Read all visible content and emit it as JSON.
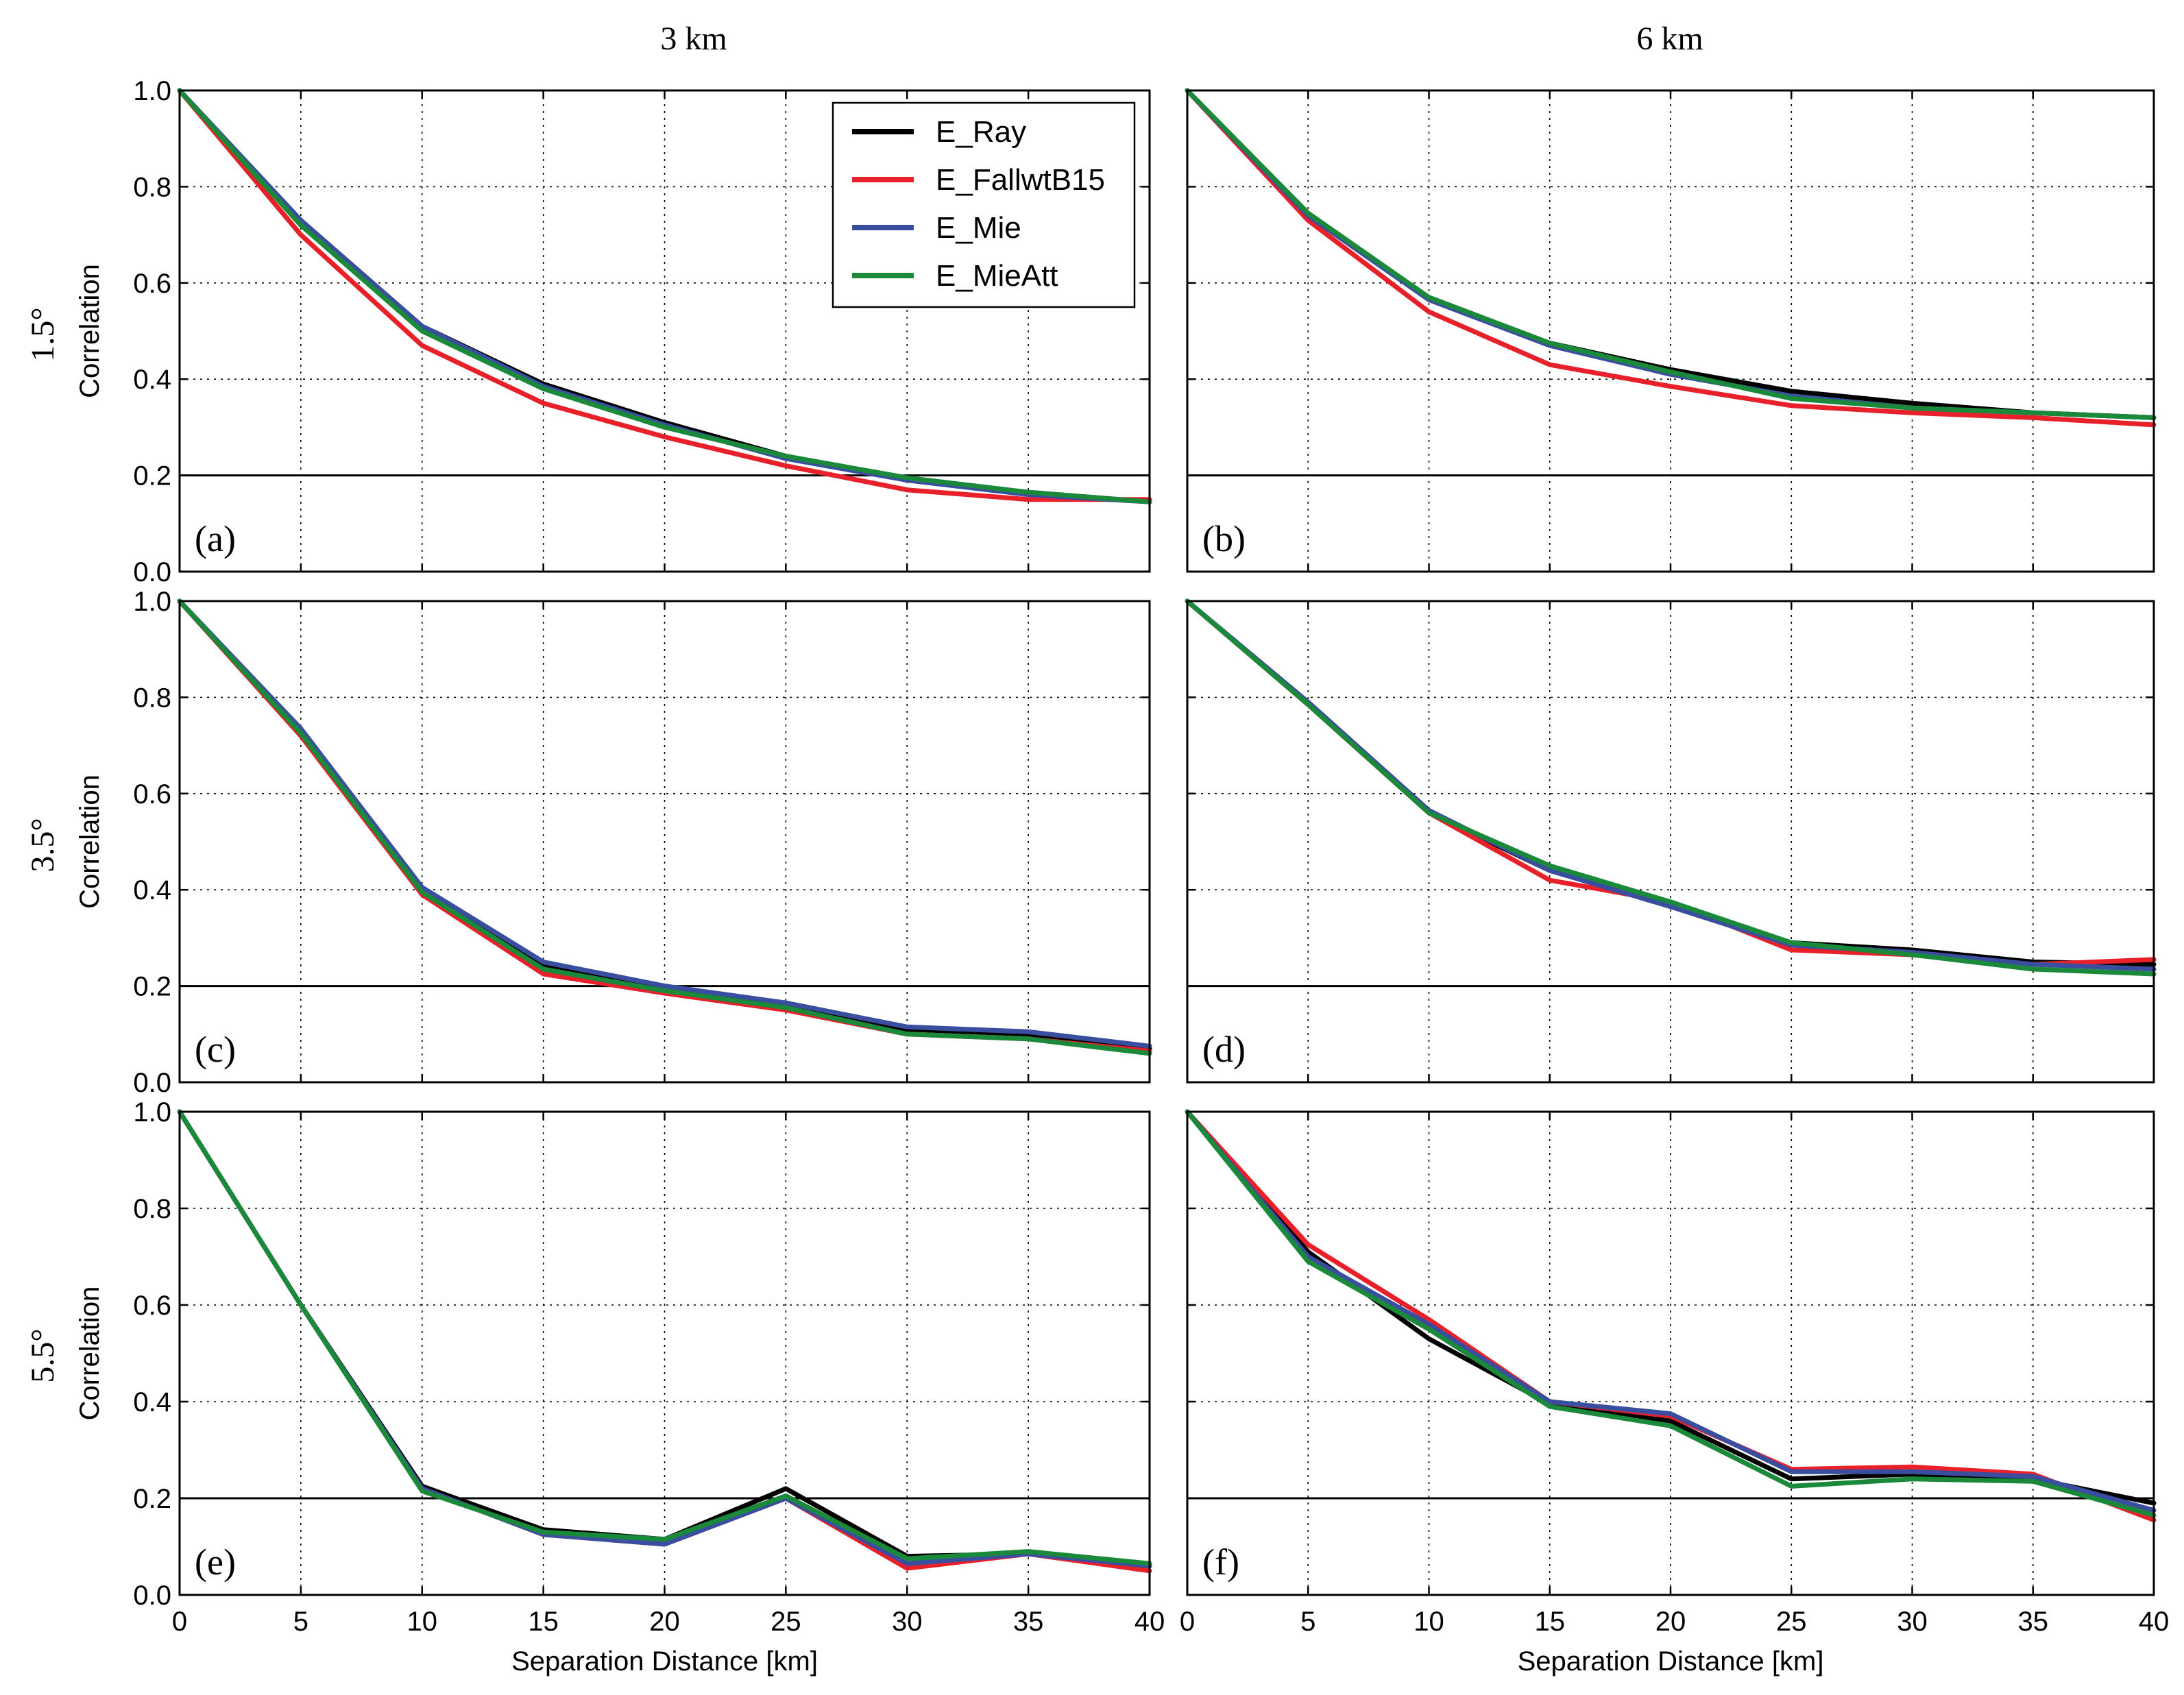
{
  "figure": {
    "col_titles": [
      "3 km",
      "6 km"
    ],
    "row_titles": [
      "1.5°",
      "3.5°",
      "5.5°"
    ],
    "ylabel": "Correlation",
    "xlabel": "Separation Distance [km]",
    "xticks": [
      "0",
      "5",
      "10",
      "15",
      "20",
      "25",
      "30",
      "35",
      "40"
    ],
    "yticks": [
      "0.0",
      "0.2",
      "0.4",
      "0.6",
      "0.8",
      "1.0"
    ],
    "legend": [
      {
        "name": "E_Ray",
        "color": "#000000"
      },
      {
        "name": "E_FallwtB15",
        "color": "#e8202a"
      },
      {
        "name": "E_Mie",
        "color": "#3a4ea0"
      },
      {
        "name": "E_MieAtt",
        "color": "#1a8a3a"
      }
    ]
  },
  "chart_data": [
    {
      "type": "line",
      "panel_label": "(a)",
      "elevation": "1.5°",
      "height": "3 km",
      "xlabel": "",
      "ylabel": "Correlation",
      "x": [
        0,
        5,
        10,
        15,
        20,
        25,
        30,
        35,
        40
      ],
      "xlim": [
        0,
        40
      ],
      "ylim": [
        0,
        1
      ],
      "reference_line": 0.2,
      "grid": true,
      "legend": "top-right",
      "series": [
        {
          "name": "E_Ray",
          "values": [
            1.0,
            0.73,
            0.51,
            0.39,
            0.31,
            0.24,
            0.19,
            0.165,
            0.145
          ]
        },
        {
          "name": "E_FallwtB15",
          "values": [
            1.0,
            0.7,
            0.47,
            0.35,
            0.28,
            0.22,
            0.17,
            0.15,
            0.15
          ]
        },
        {
          "name": "E_Mie",
          "values": [
            1.0,
            0.73,
            0.51,
            0.385,
            0.305,
            0.235,
            0.19,
            0.16,
            0.145
          ]
        },
        {
          "name": "E_MieAtt",
          "values": [
            1.0,
            0.72,
            0.5,
            0.38,
            0.3,
            0.24,
            0.195,
            0.165,
            0.145
          ]
        }
      ]
    },
    {
      "type": "line",
      "panel_label": "(b)",
      "elevation": "1.5°",
      "height": "6 km",
      "xlabel": "",
      "ylabel": "",
      "x": [
        0,
        5,
        10,
        15,
        20,
        25,
        30,
        35,
        40
      ],
      "xlim": [
        0,
        40
      ],
      "ylim": [
        0,
        1
      ],
      "reference_line": 0.2,
      "grid": true,
      "series": [
        {
          "name": "E_Ray",
          "values": [
            1.0,
            0.74,
            0.57,
            0.475,
            0.42,
            0.375,
            0.35,
            0.33,
            0.32
          ]
        },
        {
          "name": "E_FallwtB15",
          "values": [
            1.0,
            0.73,
            0.54,
            0.43,
            0.385,
            0.345,
            0.33,
            0.32,
            0.305
          ]
        },
        {
          "name": "E_Mie",
          "values": [
            1.0,
            0.74,
            0.565,
            0.47,
            0.41,
            0.365,
            0.34,
            0.33,
            0.32
          ]
        },
        {
          "name": "E_MieAtt",
          "values": [
            1.0,
            0.745,
            0.57,
            0.475,
            0.415,
            0.36,
            0.34,
            0.33,
            0.32
          ]
        }
      ]
    },
    {
      "type": "line",
      "panel_label": "(c)",
      "elevation": "3.5°",
      "height": "3 km",
      "xlabel": "",
      "ylabel": "Correlation",
      "x": [
        0,
        5,
        10,
        15,
        20,
        25,
        30,
        35,
        40
      ],
      "xlim": [
        0,
        40
      ],
      "ylim": [
        0,
        1
      ],
      "reference_line": 0.2,
      "grid": true,
      "series": [
        {
          "name": "E_Ray",
          "values": [
            1.0,
            0.73,
            0.4,
            0.245,
            0.2,
            0.16,
            0.11,
            0.1,
            0.07
          ]
        },
        {
          "name": "E_FallwtB15",
          "values": [
            1.0,
            0.72,
            0.39,
            0.225,
            0.185,
            0.15,
            0.1,
            0.09,
            0.065
          ]
        },
        {
          "name": "E_Mie",
          "values": [
            1.0,
            0.735,
            0.405,
            0.25,
            0.2,
            0.165,
            0.115,
            0.105,
            0.075
          ]
        },
        {
          "name": "E_MieAtt",
          "values": [
            1.0,
            0.725,
            0.395,
            0.235,
            0.19,
            0.155,
            0.1,
            0.09,
            0.06
          ]
        }
      ]
    },
    {
      "type": "line",
      "panel_label": "(d)",
      "elevation": "3.5°",
      "height": "6 km",
      "xlabel": "",
      "ylabel": "",
      "x": [
        0,
        5,
        10,
        15,
        20,
        25,
        30,
        35,
        40
      ],
      "xlim": [
        0,
        40
      ],
      "ylim": [
        0,
        1
      ],
      "reference_line": 0.2,
      "grid": true,
      "series": [
        {
          "name": "E_Ray",
          "values": [
            1.0,
            0.785,
            0.56,
            0.44,
            0.37,
            0.29,
            0.275,
            0.25,
            0.245
          ]
        },
        {
          "name": "E_FallwtB15",
          "values": [
            1.0,
            0.785,
            0.56,
            0.42,
            0.375,
            0.275,
            0.265,
            0.245,
            0.255
          ]
        },
        {
          "name": "E_Mie",
          "values": [
            1.0,
            0.79,
            0.565,
            0.44,
            0.365,
            0.285,
            0.27,
            0.245,
            0.235
          ]
        },
        {
          "name": "E_MieAtt",
          "values": [
            1.0,
            0.785,
            0.56,
            0.45,
            0.375,
            0.29,
            0.265,
            0.235,
            0.225
          ]
        }
      ]
    },
    {
      "type": "line",
      "panel_label": "(e)",
      "elevation": "5.5°",
      "height": "3 km",
      "xlabel": "Separation Distance [km]",
      "ylabel": "Correlation",
      "x": [
        0,
        5,
        10,
        15,
        20,
        25,
        30,
        35,
        40
      ],
      "xlim": [
        0,
        40
      ],
      "ylim": [
        0,
        1
      ],
      "reference_line": 0.2,
      "grid": true,
      "series": [
        {
          "name": "E_Ray",
          "values": [
            1.0,
            0.6,
            0.225,
            0.135,
            0.115,
            0.22,
            0.08,
            0.085,
            0.06
          ]
        },
        {
          "name": "E_FallwtB15",
          "values": [
            1.0,
            0.6,
            0.22,
            0.125,
            0.105,
            0.2,
            0.055,
            0.085,
            0.05
          ]
        },
        {
          "name": "E_Mie",
          "values": [
            1.0,
            0.6,
            0.22,
            0.125,
            0.105,
            0.2,
            0.065,
            0.085,
            0.06
          ]
        },
        {
          "name": "E_MieAtt",
          "values": [
            1.0,
            0.6,
            0.215,
            0.13,
            0.115,
            0.205,
            0.075,
            0.09,
            0.065
          ]
        }
      ]
    },
    {
      "type": "line",
      "panel_label": "(f)",
      "elevation": "5.5°",
      "height": "6 km",
      "xlabel": "Separation Distance [km]",
      "ylabel": "",
      "x": [
        0,
        5,
        10,
        15,
        20,
        25,
        30,
        35,
        40
      ],
      "xlim": [
        0,
        40
      ],
      "ylim": [
        0,
        1
      ],
      "reference_line": 0.2,
      "grid": true,
      "series": [
        {
          "name": "E_Ray",
          "values": [
            1.0,
            0.71,
            0.53,
            0.395,
            0.36,
            0.24,
            0.25,
            0.24,
            0.19
          ]
        },
        {
          "name": "E_FallwtB15",
          "values": [
            1.0,
            0.725,
            0.57,
            0.4,
            0.37,
            0.26,
            0.265,
            0.25,
            0.155
          ]
        },
        {
          "name": "E_Mie",
          "values": [
            1.0,
            0.7,
            0.56,
            0.4,
            0.375,
            0.255,
            0.255,
            0.245,
            0.175
          ]
        },
        {
          "name": "E_MieAtt",
          "values": [
            1.0,
            0.69,
            0.55,
            0.39,
            0.35,
            0.225,
            0.24,
            0.235,
            0.165
          ]
        }
      ]
    }
  ]
}
